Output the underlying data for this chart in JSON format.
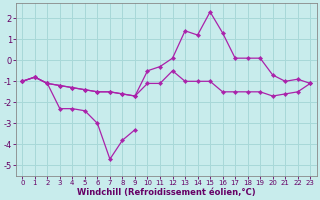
{
  "background_color": "#c8ecec",
  "grid_color": "#a8d8d8",
  "line_color": "#aa22aa",
  "marker_color": "#aa22aa",
  "xlabel": "Windchill (Refroidissement éolien,°C)",
  "xlabel_color": "#660066",
  "tick_color": "#660066",
  "ylim": [
    -5.5,
    2.7
  ],
  "xlim": [
    -0.5,
    23.5
  ],
  "yticks": [
    -5,
    -4,
    -3,
    -2,
    -1,
    0,
    1,
    2
  ],
  "xticks": [
    0,
    1,
    2,
    3,
    4,
    5,
    6,
    7,
    8,
    9,
    10,
    11,
    12,
    13,
    14,
    15,
    16,
    17,
    18,
    19,
    20,
    21,
    22,
    23
  ],
  "line1_x": [
    0,
    1,
    2,
    3,
    4,
    5,
    6,
    7,
    8,
    9
  ],
  "line1_y": [
    -1.0,
    -0.8,
    -1.1,
    -2.3,
    -2.3,
    -2.4,
    -3.0,
    -4.7,
    -3.8,
    -3.3
  ],
  "line2_x": [
    0,
    1,
    2,
    3,
    4,
    5,
    6,
    7,
    8,
    9,
    10,
    11,
    12,
    13,
    14,
    15,
    16,
    17,
    18,
    19,
    20,
    21,
    22,
    23
  ],
  "line2_y": [
    -1.0,
    -0.8,
    -1.1,
    -1.2,
    -1.3,
    -1.4,
    -1.5,
    -1.5,
    -1.6,
    -1.7,
    -1.1,
    -1.1,
    -0.5,
    -1.0,
    -1.0,
    -1.0,
    -1.5,
    -1.5,
    -1.5,
    -1.5,
    -1.7,
    -1.6,
    -1.5,
    -1.1
  ],
  "line3_x": [
    0,
    1,
    2,
    3,
    4,
    5,
    6,
    7,
    8,
    9,
    10,
    11,
    12,
    13,
    14,
    15,
    16,
    17,
    18,
    19,
    20,
    21,
    22,
    23
  ],
  "line3_y": [
    -1.0,
    -0.8,
    -1.1,
    -1.2,
    -1.3,
    -1.4,
    -1.5,
    -1.5,
    -1.6,
    -1.7,
    -0.5,
    -0.3,
    0.1,
    1.4,
    1.2,
    2.3,
    1.3,
    0.1,
    0.1,
    0.1,
    -0.7,
    -1.0,
    -0.9,
    -1.1
  ]
}
